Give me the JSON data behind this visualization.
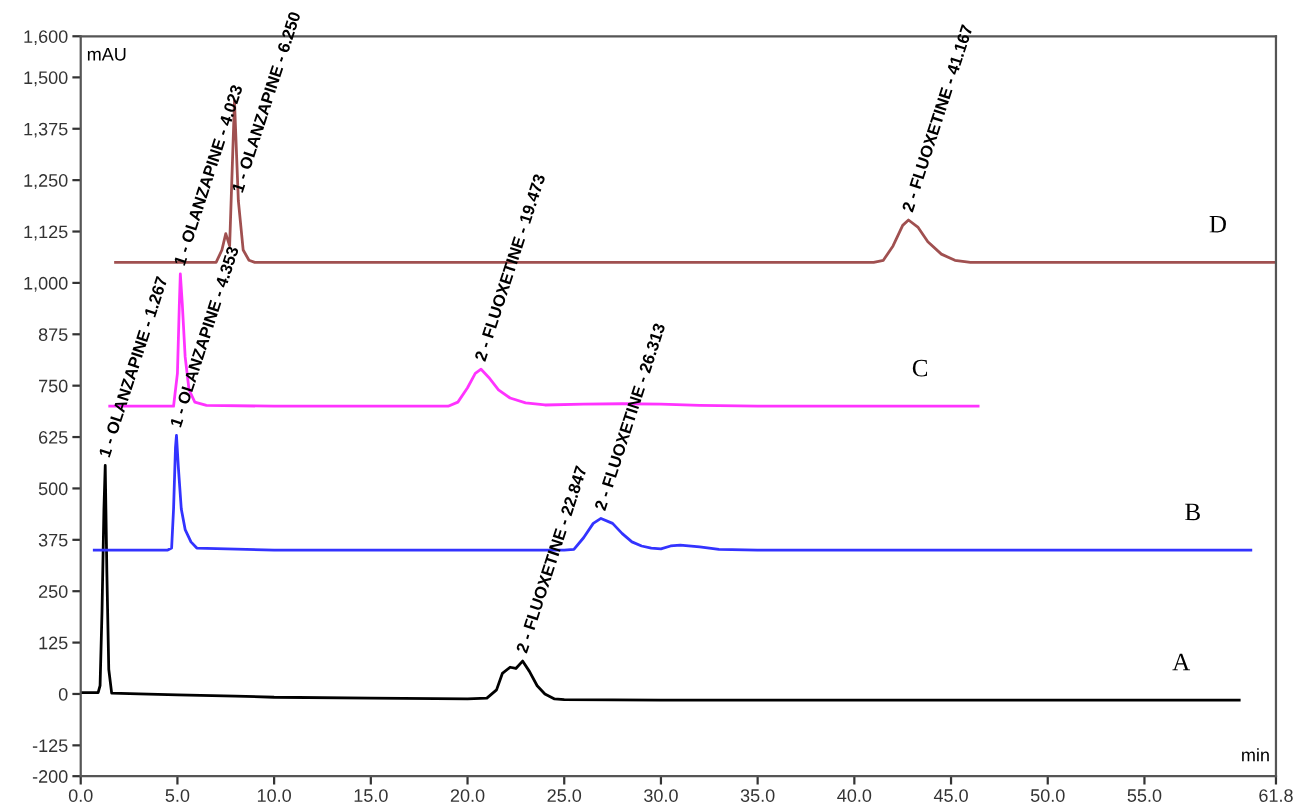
{
  "chart_data": {
    "type": "line",
    "xlabel": "min",
    "ylabel": "mAU",
    "xlim": [
      0,
      61.8
    ],
    "ylim": [
      -200,
      1600
    ],
    "xticks": [
      {
        "value": 0,
        "label": "0.0"
      },
      {
        "value": 5,
        "label": "5.0"
      },
      {
        "value": 10,
        "label": "10.0"
      },
      {
        "value": 15,
        "label": "15.0"
      },
      {
        "value": 20,
        "label": "20.0"
      },
      {
        "value": 25,
        "label": "25.0"
      },
      {
        "value": 30,
        "label": "30.0"
      },
      {
        "value": 35,
        "label": "35.0"
      },
      {
        "value": 40,
        "label": "40.0"
      },
      {
        "value": 45,
        "label": "45.0"
      },
      {
        "value": 50,
        "label": "50.0"
      },
      {
        "value": 55,
        "label": "55.0"
      },
      61.8
    ],
    "yticks": [
      -200,
      -125,
      0,
      125,
      250,
      375,
      500,
      625,
      750,
      875,
      {
        "value": 1000,
        "label": "1,000"
      },
      {
        "value": 1125,
        "label": "1,125"
      },
      {
        "value": 1250,
        "label": "1,250"
      },
      {
        "value": 1375,
        "label": "1,375"
      },
      {
        "value": 1500,
        "label": "1,500"
      },
      {
        "value": 1600,
        "label": "1,600"
      }
    ],
    "grid": false,
    "legend": false,
    "marker": "none",
    "line_style": "solid",
    "series": [
      {
        "name": "A",
        "color": "#000000",
        "x": [
          0,
          0.9,
          1.0,
          1.1,
          1.2,
          1.267,
          1.35,
          1.45,
          1.6,
          3,
          5,
          8,
          10,
          15,
          20,
          21,
          21.5,
          21.8,
          22.2,
          22.5,
          22.847,
          23.2,
          23.6,
          24,
          24.5,
          25,
          30,
          40,
          50,
          59.9
        ],
        "values": [
          3,
          3,
          20,
          200,
          450,
          556,
          300,
          60,
          2,
          0,
          -2,
          -5,
          -8,
          -10,
          -12,
          -10,
          10,
          50,
          65,
          62,
          80,
          55,
          20,
          0,
          -12,
          -14,
          -15,
          -15,
          -15,
          -15
        ]
      },
      {
        "name": "B",
        "color": "#3333ff",
        "x": [
          0.7,
          4.5,
          4.7,
          4.8,
          4.9,
          4.95,
          5.05,
          5.2,
          5.4,
          5.7,
          6,
          10,
          20,
          25,
          25.5,
          26,
          26.5,
          26.9,
          27.5,
          28,
          28.5,
          29,
          29.5,
          30,
          30.5,
          31,
          32,
          33,
          35,
          40,
          50,
          60.5
        ],
        "values": [
          350,
          350,
          355,
          450,
          600,
          629,
          550,
          450,
          400,
          370,
          355,
          350,
          350,
          350,
          352,
          380,
          415,
          427,
          415,
          390,
          370,
          360,
          355,
          353,
          360,
          362,
          358,
          352,
          350,
          350,
          350,
          350
        ]
      },
      {
        "name": "C",
        "color": "#ff33ff",
        "x": [
          1.5,
          4.8,
          5.0,
          5.1,
          5.15,
          5.25,
          5.4,
          5.6,
          5.9,
          6.5,
          10,
          19,
          19.5,
          20,
          20.4,
          20.7,
          21.1,
          21.6,
          22.2,
          23,
          24,
          26,
          28,
          30,
          32,
          35,
          46.4
        ],
        "values": [
          700,
          700,
          780,
          950,
          1022,
          950,
          820,
          740,
          710,
          702,
          700,
          700,
          710,
          745,
          780,
          790,
          770,
          740,
          720,
          708,
          703,
          705,
          706,
          705,
          702,
          700,
          700
        ]
      },
      {
        "name": "D",
        "color": "#a05050",
        "x": [
          1.8,
          7.0,
          7.3,
          7.5,
          7.7,
          7.95,
          8.15,
          8.4,
          8.7,
          9,
          15,
          30,
          41,
          41.5,
          42,
          42.5,
          42.8,
          43.3,
          43.8,
          44.5,
          45.2,
          46,
          61.8
        ],
        "values": [
          1050,
          1050,
          1080,
          1120,
          1090,
          1443,
          1200,
          1080,
          1055,
          1050,
          1050,
          1050,
          1050,
          1055,
          1090,
          1140,
          1153,
          1135,
          1100,
          1070,
          1055,
          1050,
          1050
        ]
      }
    ],
    "annotations": [
      {
        "text": "1 - OLANZAPINE - 1.267",
        "x": 1.267,
        "y": 556
      },
      {
        "text": "1 - OLANZAPINE - 4.353",
        "x": 4.95,
        "y": 629
      },
      {
        "text": "1 - OLANZAPINE - 4.023",
        "x": 5.15,
        "y": 1022
      },
      {
        "text": "1 - OLANZAPINE - 6.250",
        "x": 8.15,
        "y": 1200
      },
      {
        "text": "2 - FLUOXETINE - 19.473",
        "x": 20.7,
        "y": 790
      },
      {
        "text": "2 - FLUOXETINE - 22.847",
        "x": 22.847,
        "y": 80
      },
      {
        "text": "2 - FLUOXETINE - 26.313",
        "x": 26.9,
        "y": 427
      },
      {
        "text": "2 - FLUOXETINE - 41.167",
        "x": 42.8,
        "y": 1153
      }
    ]
  }
}
